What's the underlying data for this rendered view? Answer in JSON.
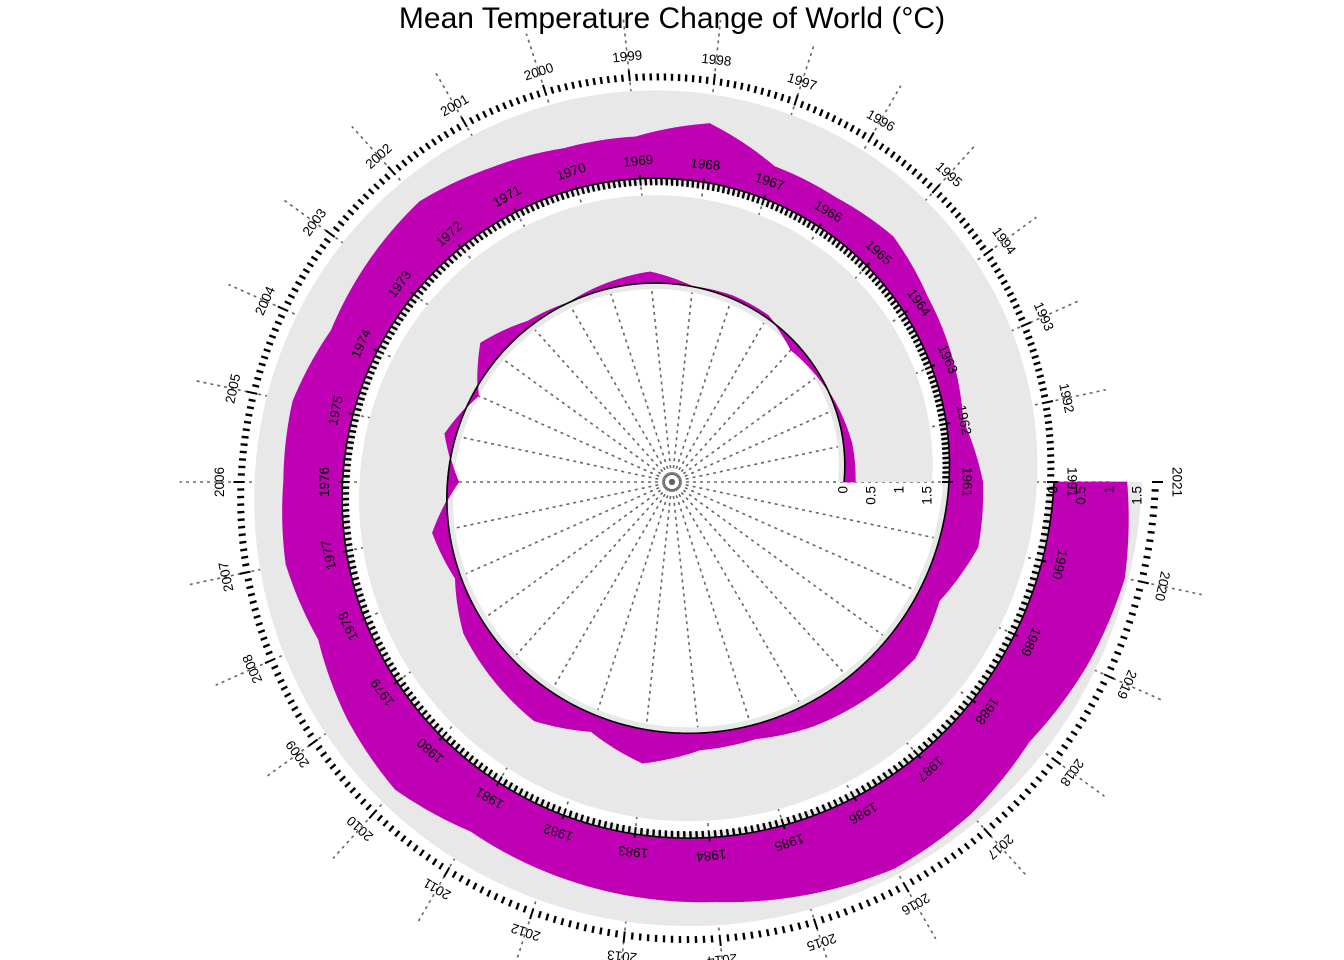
{
  "chart_data": {
    "type": "area",
    "title": "Mean Temperature Change of World (°C)",
    "xlabel": "",
    "ylabel": "",
    "layout_style": "spiral",
    "years": [
      1961,
      1962,
      1963,
      1964,
      1965,
      1966,
      1967,
      1968,
      1969,
      1970,
      1971,
      1972,
      1973,
      1974,
      1975,
      1976,
      1977,
      1978,
      1979,
      1980,
      1981,
      1982,
      1983,
      1984,
      1985,
      1986,
      1987,
      1988,
      1989,
      1990,
      1991,
      1992,
      1993,
      1994,
      1995,
      1996,
      1997,
      1998,
      1999,
      2000,
      2001,
      2002,
      2003,
      2004,
      2005,
      2006,
      2007,
      2008,
      2009,
      2010,
      2011,
      2012,
      2013,
      2014,
      2015,
      2016,
      2017,
      2018,
      2019,
      2020,
      2021
    ],
    "year_labels": [
      "1961",
      "1962",
      "1963",
      "1964",
      "1965",
      "1966",
      "1967",
      "1968",
      "1969",
      "1970",
      "1971",
      "1972",
      "1973",
      "1974",
      "1975",
      "1976",
      "1977",
      "1978",
      "1979",
      "1980",
      "1981",
      "1982",
      "1983",
      "1984",
      "1985",
      "1986",
      "1987",
      "1988",
      "1989",
      "1990",
      "1991",
      "1992",
      "1993",
      "1994",
      "1995",
      "1996",
      "1997",
      "1998",
      "1999",
      "2000",
      "2001",
      "2002",
      "2003",
      "2004",
      "2005",
      "2006",
      "2007",
      "2008",
      "2009",
      "2010",
      "2011",
      "2012",
      "2013",
      "2014",
      "2015",
      "2016",
      "2017",
      "2018",
      "2019",
      "2020",
      "2021"
    ],
    "values": [
      0.2,
      0.15,
      0.05,
      -0.05,
      -0.15,
      0.05,
      0.05,
      0.0,
      0.2,
      0.1,
      0.0,
      0.1,
      0.4,
      -0.1,
      0.2,
      -0.2,
      0.3,
      0.1,
      0.4,
      0.5,
      0.6,
      0.3,
      0.6,
      0.3,
      0.25,
      0.4,
      0.5,
      0.6,
      0.4,
      0.7,
      0.6,
      0.3,
      0.4,
      0.5,
      0.7,
      0.6,
      0.6,
      1.05,
      0.75,
      0.75,
      0.9,
      1.1,
      1.0,
      0.9,
      1.1,
      1.05,
      1.1,
      0.9,
      1.1,
      1.25,
      1.0,
      1.05,
      1.1,
      1.15,
      1.3,
      1.45,
      1.4,
      1.25,
      1.4,
      1.5,
      1.3
    ],
    "reference_line": 0,
    "radial_axis": {
      "ticks": [
        0,
        0.5,
        1,
        1.5
      ],
      "tick_labels": [
        "0",
        "0.5",
        "1",
        "1.5"
      ],
      "range": [
        0,
        1.5
      ]
    },
    "grid": true,
    "colors": {
      "fill": "#BF00B4",
      "track": "#E8E8E8",
      "reference": "#000000",
      "grid": "#666666"
    }
  }
}
